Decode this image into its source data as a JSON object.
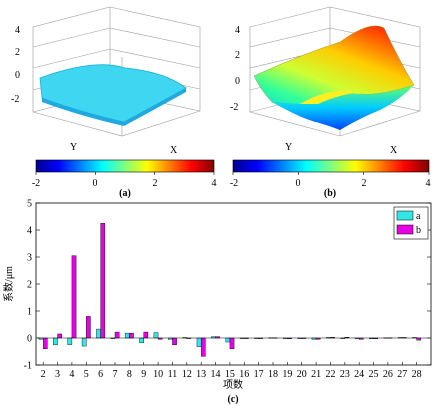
{
  "figure": {
    "panels": [
      {
        "caption": "(a)",
        "z_ticks": [
          "4",
          "2",
          "0",
          "-2"
        ],
        "x_axis_label": "X",
        "y_axis_label": "Y",
        "colorbar_ticks": [
          "-2",
          "0",
          "2",
          "4"
        ]
      },
      {
        "caption": "(b)",
        "z_ticks": [
          "4",
          "2",
          "0",
          "-2"
        ],
        "x_axis_label": "X",
        "y_axis_label": "Y",
        "colorbar_ticks": [
          "-2",
          "0",
          "2",
          "4"
        ]
      }
    ],
    "bar_caption": "(c)",
    "colors": {
      "a": "#33e6e6",
      "b": "#e600e6"
    }
  },
  "chart_data": {
    "type": "bar",
    "xlabel": "项数",
    "ylabel": "系数/μm",
    "ylim": [
      -1,
      5
    ],
    "yticks": [
      -1,
      0,
      1,
      2,
      3,
      4,
      5
    ],
    "legend_position": "top-right",
    "categories": [
      "2",
      "3",
      "4",
      "5",
      "6",
      "7",
      "8",
      "9",
      "10",
      "11",
      "12",
      "13",
      "14",
      "15",
      "16",
      "17",
      "18",
      "19",
      "20",
      "21",
      "22",
      "23",
      "24",
      "25",
      "26",
      "27",
      "28"
    ],
    "series": [
      {
        "name": "a",
        "values": [
          -0.05,
          -0.25,
          -0.25,
          -0.3,
          0.33,
          0.0,
          0.18,
          -0.18,
          0.2,
          -0.05,
          0.02,
          -0.32,
          0.05,
          -0.15,
          -0.02,
          -0.02,
          0.01,
          -0.02,
          -0.01,
          -0.05,
          0.02,
          -0.02,
          -0.02,
          -0.03,
          0.01,
          0.02,
          0.02
        ]
      },
      {
        "name": "b",
        "values": [
          -0.4,
          0.15,
          3.05,
          0.8,
          4.25,
          0.22,
          0.18,
          0.22,
          -0.05,
          -0.25,
          0.0,
          -0.68,
          0.05,
          -0.4,
          -0.02,
          -0.02,
          0.01,
          -0.03,
          -0.02,
          -0.05,
          0.03,
          0.03,
          -0.05,
          -0.03,
          0.01,
          0.02,
          -0.08
        ]
      }
    ]
  }
}
